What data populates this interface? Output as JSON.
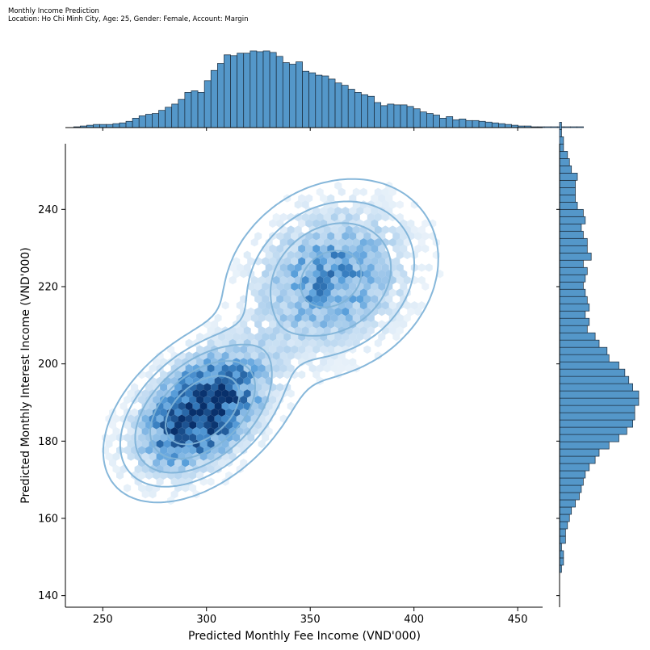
{
  "colors": {
    "bar_fill": "#5497c9",
    "bar_edge": "#1a2a3a",
    "contour": "#7fb3d8",
    "hex_dark": "#08306b",
    "hex_light": "#deebf7",
    "axis": "#000000"
  },
  "chart_data": {
    "type": "scatter",
    "subtype": "jointplot-hexbin-kde",
    "title": "Monthly Income Prediction",
    "subtitle": "Location: Ho Chi Minh City, Age: 25, Gender: Female, Account: Margin",
    "xlabel": "Predicted Monthly Fee Income (VND'000)",
    "ylabel": "Predicted Monthly Interest Income (VND'000)",
    "xlim": [
      232,
      462
    ],
    "ylim": [
      137,
      257
    ],
    "xticks": [
      250,
      300,
      350,
      400,
      450
    ],
    "yticks": [
      140,
      160,
      180,
      200,
      220,
      240
    ],
    "grid": false,
    "clusters": [
      {
        "name": "",
        "center": [
          298,
          188
        ],
        "sd": [
          18,
          9
        ],
        "corr": 0.45,
        "weight": 0.68
      },
      {
        "name": "",
        "center": [
          360,
          222
        ],
        "sd": [
          22,
          11
        ],
        "corr": 0.2,
        "weight": 0.32
      }
    ],
    "x_histogram": {
      "bin_start": 236,
      "bin_width": 3.15,
      "counts": [
        1,
        2,
        3,
        4,
        4,
        4,
        5,
        6,
        8,
        12,
        15,
        17,
        18,
        22,
        26,
        30,
        36,
        45,
        47,
        45,
        60,
        73,
        82,
        93,
        92,
        95,
        95,
        98,
        97,
        98,
        96,
        91,
        83,
        81,
        84,
        72,
        70,
        67,
        66,
        62,
        57,
        54,
        49,
        45,
        42,
        40,
        32,
        28,
        30,
        29,
        29,
        27,
        24,
        20,
        18,
        16,
        12,
        14,
        10,
        11,
        9,
        9,
        8,
        7,
        6,
        5,
        4,
        3,
        2,
        2,
        1,
        1,
        1,
        1,
        1,
        1,
        1,
        1
      ]
    },
    "y_histogram": {
      "bin_start": 146,
      "bin_width": 1.88,
      "counts": [
        1,
        2,
        2,
        1,
        3,
        3,
        4,
        5,
        6,
        8,
        10,
        11,
        12,
        13,
        15,
        18,
        20,
        25,
        30,
        34,
        37,
        38,
        38,
        40,
        40,
        37,
        35,
        33,
        30,
        25,
        24,
        20,
        18,
        14,
        15,
        13,
        15,
        14,
        13,
        12,
        13,
        14,
        12,
        16,
        14,
        14,
        12,
        11,
        13,
        12,
        9,
        8,
        8,
        8,
        9,
        6,
        5,
        4,
        2,
        2,
        1,
        1
      ]
    }
  }
}
